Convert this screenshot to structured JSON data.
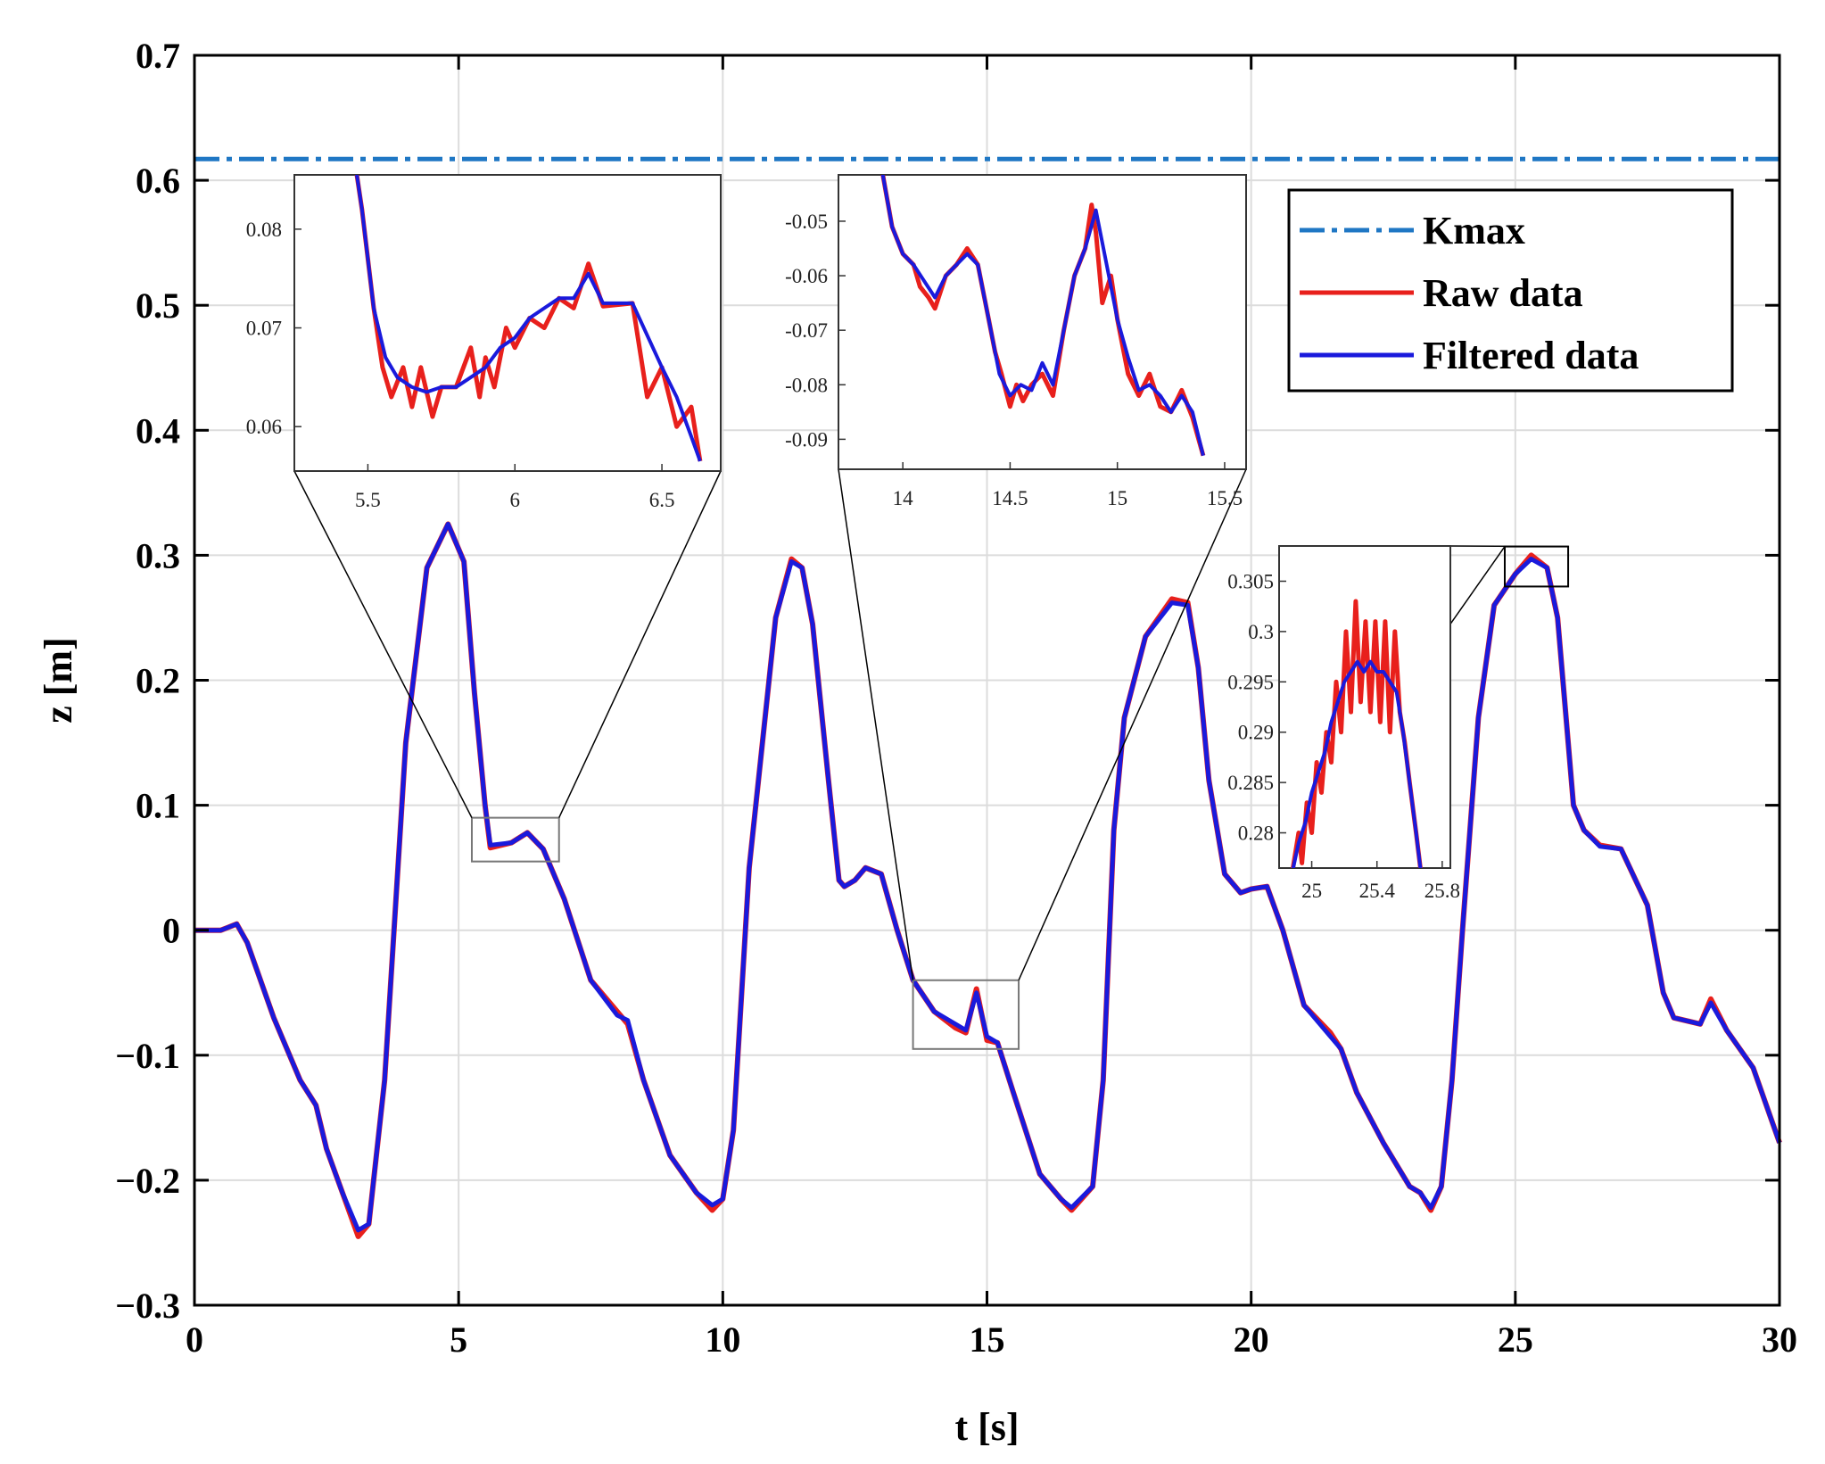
{
  "chart_data": {
    "type": "line",
    "xlabel": "t [s]",
    "ylabel": "z [m]",
    "xlim": [
      0,
      30
    ],
    "ylim": [
      -0.3,
      0.7
    ],
    "xticks": [
      0,
      5,
      10,
      15,
      20,
      25,
      30
    ],
    "yticks": [
      -0.3,
      -0.2,
      -0.1,
      0,
      0.1,
      0.2,
      0.3,
      0.4,
      0.5,
      0.6,
      0.7
    ],
    "grid": true,
    "legend": {
      "placement": "top-right",
      "entries": [
        "Kmax",
        "Raw data",
        "Filtered data"
      ]
    },
    "colors": {
      "kmax": "#1f77c4",
      "raw": "#e8201c",
      "filtered": "#1a1adc"
    },
    "kmax": 0.617,
    "series": [
      {
        "name": "Filtered data",
        "x": [
          0,
          0.5,
          0.8,
          1.0,
          1.5,
          2.0,
          2.3,
          2.5,
          2.8,
          3.1,
          3.3,
          3.6,
          4.0,
          4.4,
          4.8,
          5.1,
          5.3,
          5.5,
          5.6,
          6.0,
          6.3,
          6.6,
          7.0,
          7.5,
          8.0,
          8.2,
          8.5,
          9.0,
          9.5,
          9.8,
          10.0,
          10.2,
          10.5,
          11.0,
          11.3,
          11.5,
          11.7,
          12.0,
          12.2,
          12.3,
          12.5,
          12.7,
          13.0,
          13.3,
          13.6,
          14.0,
          14.4,
          14.6,
          14.8,
          15.0,
          15.2,
          15.5,
          16.0,
          16.4,
          16.6,
          17.0,
          17.2,
          17.4,
          17.6,
          18.0,
          18.5,
          18.8,
          19.0,
          19.2,
          19.5,
          19.8,
          20.0,
          20.3,
          20.6,
          21.0,
          21.5,
          21.7,
          22.0,
          22.5,
          23.0,
          23.2,
          23.4,
          23.6,
          23.8,
          24.0,
          24.3,
          24.6,
          25.0,
          25.3,
          25.6,
          25.8,
          26.0,
          26.1,
          26.3,
          26.6,
          27.0,
          27.5,
          27.8,
          28.0,
          28.5,
          28.7,
          29.0,
          29.5,
          30.0
        ],
        "y": [
          0.0,
          0.0,
          0.005,
          -0.01,
          -0.07,
          -0.12,
          -0.14,
          -0.175,
          -0.21,
          -0.24,
          -0.235,
          -0.12,
          0.15,
          0.29,
          0.325,
          0.295,
          0.19,
          0.1,
          0.068,
          0.07,
          0.078,
          0.065,
          0.025,
          -0.04,
          -0.068,
          -0.072,
          -0.12,
          -0.18,
          -0.21,
          -0.22,
          -0.215,
          -0.16,
          0.05,
          0.25,
          0.295,
          0.29,
          0.245,
          0.12,
          0.04,
          0.035,
          0.04,
          0.05,
          0.045,
          0.0,
          -0.04,
          -0.065,
          -0.075,
          -0.08,
          -0.05,
          -0.085,
          -0.09,
          -0.13,
          -0.195,
          -0.215,
          -0.222,
          -0.205,
          -0.12,
          0.08,
          0.17,
          0.235,
          0.262,
          0.26,
          0.21,
          0.12,
          0.045,
          0.03,
          0.033,
          0.035,
          0.0,
          -0.06,
          -0.085,
          -0.095,
          -0.13,
          -0.17,
          -0.205,
          -0.21,
          -0.222,
          -0.205,
          -0.12,
          0.0,
          0.17,
          0.26,
          0.285,
          0.297,
          0.29,
          0.25,
          0.15,
          0.1,
          0.08,
          0.067,
          0.065,
          0.02,
          -0.05,
          -0.07,
          -0.075,
          -0.058,
          -0.08,
          -0.11,
          -0.17
        ]
      },
      {
        "name": "Raw data",
        "x": [
          0,
          0.5,
          0.8,
          1.0,
          1.5,
          2.0,
          2.3,
          2.5,
          2.8,
          3.1,
          3.3,
          3.6,
          4.0,
          4.4,
          4.8,
          5.1,
          5.3,
          5.5,
          5.6,
          6.0,
          6.3,
          6.6,
          7.0,
          7.5,
          8.0,
          8.2,
          8.5,
          9.0,
          9.5,
          9.8,
          10.0,
          10.2,
          10.5,
          11.0,
          11.3,
          11.5,
          11.7,
          12.0,
          12.2,
          12.3,
          12.5,
          12.7,
          13.0,
          13.3,
          13.6,
          14.0,
          14.4,
          14.6,
          14.8,
          15.0,
          15.2,
          15.5,
          16.0,
          16.4,
          16.6,
          17.0,
          17.2,
          17.4,
          17.6,
          18.0,
          18.5,
          18.8,
          19.0,
          19.2,
          19.5,
          19.8,
          20.0,
          20.3,
          20.6,
          21.0,
          21.5,
          21.7,
          22.0,
          22.5,
          23.0,
          23.2,
          23.4,
          23.6,
          23.8,
          24.0,
          24.3,
          24.6,
          25.0,
          25.3,
          25.6,
          25.8,
          26.0,
          26.1,
          26.3,
          26.6,
          27.0,
          27.5,
          27.8,
          28.0,
          28.5,
          28.7,
          29.0,
          29.5,
          30.0
        ],
        "y": [
          0.0,
          0.0,
          0.005,
          -0.01,
          -0.07,
          -0.12,
          -0.14,
          -0.175,
          -0.21,
          -0.245,
          -0.235,
          -0.12,
          0.15,
          0.29,
          0.325,
          0.295,
          0.19,
          0.1,
          0.066,
          0.07,
          0.078,
          0.065,
          0.025,
          -0.04,
          -0.065,
          -0.075,
          -0.12,
          -0.18,
          -0.21,
          -0.224,
          -0.215,
          -0.16,
          0.05,
          0.25,
          0.297,
          0.29,
          0.245,
          0.12,
          0.04,
          0.035,
          0.04,
          0.05,
          0.045,
          0.0,
          -0.04,
          -0.065,
          -0.078,
          -0.082,
          -0.047,
          -0.088,
          -0.09,
          -0.13,
          -0.195,
          -0.215,
          -0.224,
          -0.205,
          -0.12,
          0.08,
          0.17,
          0.235,
          0.265,
          0.262,
          0.21,
          0.12,
          0.045,
          0.03,
          0.033,
          0.035,
          0.0,
          -0.06,
          -0.082,
          -0.095,
          -0.13,
          -0.17,
          -0.205,
          -0.21,
          -0.224,
          -0.205,
          -0.12,
          0.0,
          0.17,
          0.26,
          0.285,
          0.3,
          0.29,
          0.25,
          0.15,
          0.1,
          0.08,
          0.068,
          0.065,
          0.02,
          -0.05,
          -0.07,
          -0.075,
          -0.055,
          -0.08,
          -0.11,
          -0.17
        ]
      }
    ],
    "insets": [
      {
        "xlim": [
          5.25,
          6.7
        ],
        "ylim": [
          0.0555,
          0.0855
        ],
        "xticks": [
          5.5,
          6,
          6.5
        ],
        "yticks": [
          0.06,
          0.07,
          0.08
        ],
        "ytick_labels": [
          "0.06",
          "0.07",
          "0.08"
        ],
        "source_box": {
          "x": [
            5.25,
            6.9
          ],
          "y": [
            0.055,
            0.09
          ]
        },
        "filtered": {
          "x": [
            5.45,
            5.48,
            5.52,
            5.56,
            5.6,
            5.65,
            5.7,
            5.75,
            5.8,
            5.85,
            5.9,
            5.95,
            6.0,
            6.05,
            6.1,
            6.15,
            6.2,
            6.25,
            6.3,
            6.4,
            6.5,
            6.55,
            6.6,
            6.63
          ],
          "y": [
            0.088,
            0.082,
            0.072,
            0.067,
            0.065,
            0.064,
            0.0635,
            0.064,
            0.064,
            0.065,
            0.066,
            0.068,
            0.069,
            0.071,
            0.072,
            0.073,
            0.073,
            0.0755,
            0.0725,
            0.0725,
            0.066,
            0.063,
            0.059,
            0.0565
          ]
        },
        "raw": {
          "x": [
            5.45,
            5.48,
            5.5,
            5.52,
            5.55,
            5.58,
            5.62,
            5.65,
            5.68,
            5.72,
            5.75,
            5.8,
            5.85,
            5.88,
            5.9,
            5.93,
            5.97,
            6.0,
            6.05,
            6.1,
            6.15,
            6.2,
            6.25,
            6.3,
            6.4,
            6.45,
            6.5,
            6.55,
            6.6,
            6.63
          ],
          "y": [
            0.088,
            0.082,
            0.077,
            0.072,
            0.066,
            0.063,
            0.066,
            0.062,
            0.066,
            0.061,
            0.064,
            0.064,
            0.068,
            0.063,
            0.067,
            0.064,
            0.07,
            0.068,
            0.071,
            0.07,
            0.073,
            0.072,
            0.0765,
            0.0722,
            0.0725,
            0.063,
            0.066,
            0.06,
            0.062,
            0.0565
          ]
        }
      },
      {
        "xlim": [
          13.7,
          15.6
        ],
        "ylim": [
          -0.0955,
          -0.0415
        ],
        "xticks": [
          14,
          14.5,
          15,
          15.5
        ],
        "yticks": [
          -0.09,
          -0.08,
          -0.07,
          -0.06,
          -0.05
        ],
        "ytick_labels": [
          "-0.09",
          "-0.08",
          "-0.07",
          "-0.06",
          "-0.05"
        ],
        "source_box": {
          "x": [
            13.6,
            15.6
          ],
          "y": [
            -0.095,
            -0.04
          ]
        },
        "filtered": {
          "x": [
            13.9,
            13.95,
            14.0,
            14.05,
            14.1,
            14.15,
            14.2,
            14.25,
            14.3,
            14.35,
            14.4,
            14.45,
            14.5,
            14.55,
            14.6,
            14.65,
            14.7,
            14.75,
            14.8,
            14.85,
            14.9,
            14.95,
            15.0,
            15.05,
            15.1,
            15.15,
            15.2,
            15.25,
            15.3,
            15.35,
            15.4
          ],
          "y": [
            -0.04,
            -0.051,
            -0.056,
            -0.058,
            -0.061,
            -0.064,
            -0.06,
            -0.058,
            -0.056,
            -0.058,
            -0.068,
            -0.078,
            -0.082,
            -0.08,
            -0.081,
            -0.076,
            -0.08,
            -0.07,
            -0.06,
            -0.055,
            -0.048,
            -0.058,
            -0.068,
            -0.075,
            -0.081,
            -0.08,
            -0.082,
            -0.085,
            -0.082,
            -0.085,
            -0.093
          ]
        },
        "raw": {
          "x": [
            13.9,
            13.95,
            14.0,
            14.05,
            14.08,
            14.12,
            14.15,
            14.2,
            14.25,
            14.3,
            14.35,
            14.4,
            14.43,
            14.46,
            14.5,
            14.53,
            14.56,
            14.6,
            14.65,
            14.7,
            14.75,
            14.8,
            14.85,
            14.88,
            14.9,
            14.93,
            14.97,
            15.0,
            15.05,
            15.1,
            15.15,
            15.2,
            15.25,
            15.3,
            15.35,
            15.4
          ],
          "y": [
            -0.04,
            -0.051,
            -0.056,
            -0.058,
            -0.062,
            -0.064,
            -0.066,
            -0.06,
            -0.058,
            -0.055,
            -0.058,
            -0.068,
            -0.074,
            -0.078,
            -0.084,
            -0.08,
            -0.083,
            -0.08,
            -0.078,
            -0.082,
            -0.07,
            -0.06,
            -0.055,
            -0.047,
            -0.052,
            -0.065,
            -0.06,
            -0.068,
            -0.078,
            -0.082,
            -0.078,
            -0.084,
            -0.085,
            -0.081,
            -0.086,
            -0.093
          ]
        }
      },
      {
        "xlim": [
          24.8,
          25.85
        ],
        "ylim": [
          0.2765,
          0.3085
        ],
        "xticks": [
          25,
          25.4,
          25.8
        ],
        "yticks": [
          0.28,
          0.285,
          0.29,
          0.295,
          0.3,
          0.305
        ],
        "ytick_labels": [
          "0.28",
          "0.285",
          "0.29",
          "0.295",
          "0.3",
          "0.305"
        ],
        "source_box": {
          "x": [
            24.8,
            26.0
          ],
          "y": [
            0.275,
            0.307
          ]
        },
        "filtered": {
          "x": [
            24.88,
            24.92,
            24.96,
            25.0,
            25.04,
            25.08,
            25.12,
            25.16,
            25.2,
            25.24,
            25.28,
            25.32,
            25.36,
            25.4,
            25.44,
            25.48,
            25.52,
            25.56,
            25.6,
            25.64,
            25.67
          ],
          "y": [
            0.276,
            0.279,
            0.281,
            0.284,
            0.286,
            0.288,
            0.291,
            0.293,
            0.295,
            0.296,
            0.297,
            0.296,
            0.297,
            0.296,
            0.296,
            0.295,
            0.294,
            0.29,
            0.285,
            0.28,
            0.276
          ]
        },
        "raw": {
          "x": [
            24.88,
            24.92,
            24.94,
            24.97,
            25.0,
            25.03,
            25.06,
            25.09,
            25.12,
            25.15,
            25.18,
            25.21,
            25.24,
            25.27,
            25.3,
            25.33,
            25.36,
            25.39,
            25.42,
            25.45,
            25.48,
            25.51,
            25.54,
            25.57,
            25.6,
            25.64,
            25.67
          ],
          "y": [
            0.276,
            0.28,
            0.277,
            0.283,
            0.28,
            0.287,
            0.284,
            0.29,
            0.287,
            0.295,
            0.29,
            0.3,
            0.292,
            0.303,
            0.293,
            0.301,
            0.292,
            0.301,
            0.291,
            0.301,
            0.29,
            0.3,
            0.292,
            0.289,
            0.285,
            0.28,
            0.276
          ]
        }
      }
    ]
  }
}
